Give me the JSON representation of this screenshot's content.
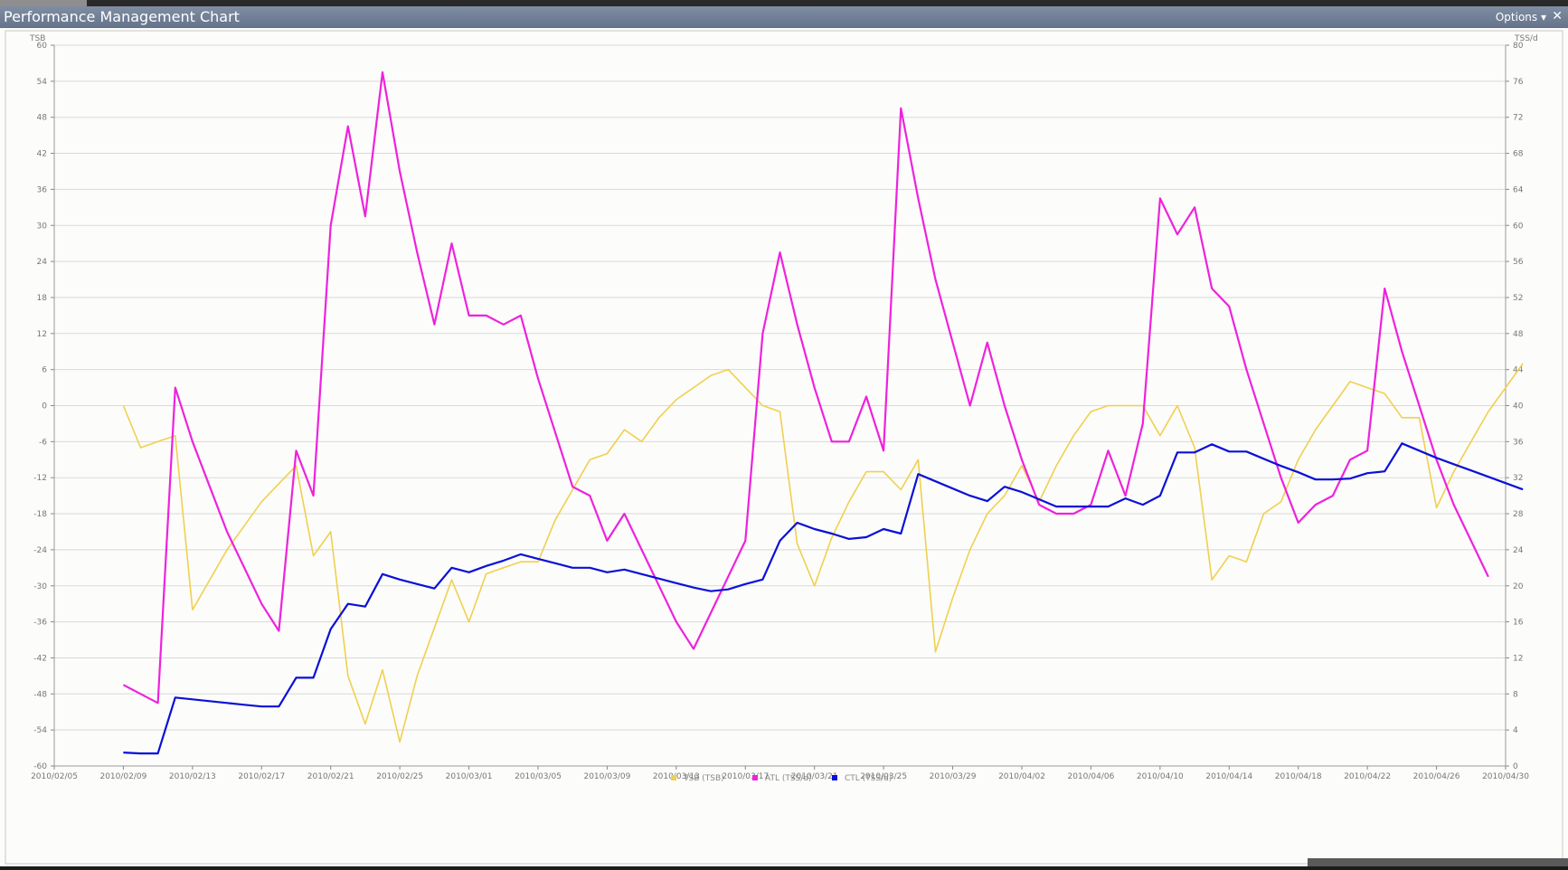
{
  "window": {
    "title": "Performance Management Chart",
    "options_label": "Options ▾",
    "close_label": "✕"
  },
  "chart_data": {
    "type": "line",
    "left_axis": {
      "label": "TSB",
      "min": -60,
      "max": 60,
      "ticks": [
        -60,
        -54,
        -48,
        -42,
        -36,
        -30,
        -24,
        -18,
        -12,
        -6,
        0,
        6,
        12,
        18,
        24,
        30,
        36,
        42,
        48,
        54,
        60
      ]
    },
    "right_axis": {
      "label": "TSS/d",
      "min": 0,
      "max": 80,
      "ticks": [
        0,
        4,
        8,
        12,
        16,
        20,
        24,
        28,
        32,
        36,
        40,
        44,
        48,
        52,
        56,
        60,
        64,
        68,
        72,
        76,
        80
      ]
    },
    "x_axis": {
      "start": "2010/02/05",
      "end": "2010/04/30",
      "tick_labels": [
        "2010/02/05",
        "2010/02/09",
        "2010/02/13",
        "2010/02/17",
        "2010/02/21",
        "2010/02/25",
        "2010/03/01",
        "2010/03/05",
        "2010/03/09",
        "2010/03/13",
        "2010/03/17",
        "2010/03/21",
        "2010/03/25",
        "2010/03/29",
        "2010/04/02",
        "2010/04/06",
        "2010/04/10",
        "2010/04/14",
        "2010/04/18",
        "2010/04/22",
        "2010/04/26",
        "2010/04/30"
      ]
    },
    "legend": {
      "placement": "bottom-center",
      "entries": [
        {
          "label": "TSB (TSB)",
          "color": "#f0d050"
        },
        {
          "label": "ATL (TSS/d)",
          "color": "#ee22dd"
        },
        {
          "label": "CTL (TSS/d)",
          "color": "#0a10d8"
        }
      ]
    },
    "grid": true,
    "series": [
      {
        "name": "TSB (TSB)",
        "axis": "left",
        "color": "#f0d050",
        "points": [
          [
            "2010/02/09",
            0
          ],
          [
            "2010/02/10",
            -7
          ],
          [
            "2010/02/11",
            -6
          ],
          [
            "2010/02/12",
            -5
          ],
          [
            "2010/02/13",
            -34
          ],
          [
            "2010/02/14",
            -29
          ],
          [
            "2010/02/15",
            -24
          ],
          [
            "2010/02/16",
            -20
          ],
          [
            "2010/02/17",
            -16
          ],
          [
            "2010/02/18",
            -13
          ],
          [
            "2010/02/19",
            -10
          ],
          [
            "2010/02/20",
            -25
          ],
          [
            "2010/02/21",
            -21
          ],
          [
            "2010/02/22",
            -45
          ],
          [
            "2010/02/23",
            -53
          ],
          [
            "2010/02/24",
            -44
          ],
          [
            "2010/02/25",
            -56
          ],
          [
            "2010/02/26",
            -45
          ],
          [
            "2010/02/27",
            -37
          ],
          [
            "2010/02/28",
            -29
          ],
          [
            "2010/03/01",
            -36
          ],
          [
            "2010/03/02",
            -28
          ],
          [
            "2010/03/03",
            -27
          ],
          [
            "2010/03/04",
            -26
          ],
          [
            "2010/03/05",
            -26
          ],
          [
            "2010/03/06",
            -19
          ],
          [
            "2010/03/07",
            -14
          ],
          [
            "2010/03/08",
            -9
          ],
          [
            "2010/03/09",
            -8
          ],
          [
            "2010/03/10",
            -4
          ],
          [
            "2010/03/11",
            -6
          ],
          [
            "2010/03/12",
            -2
          ],
          [
            "2010/03/13",
            1
          ],
          [
            "2010/03/14",
            3
          ],
          [
            "2010/03/15",
            5
          ],
          [
            "2010/03/16",
            6
          ],
          [
            "2010/03/17",
            3
          ],
          [
            "2010/03/18",
            0
          ],
          [
            "2010/03/19",
            -1
          ],
          [
            "2010/03/20",
            -23
          ],
          [
            "2010/03/21",
            -30
          ],
          [
            "2010/03/22",
            -22
          ],
          [
            "2010/03/23",
            -16
          ],
          [
            "2010/03/24",
            -11
          ],
          [
            "2010/03/25",
            -11
          ],
          [
            "2010/03/26",
            -14
          ],
          [
            "2010/03/27",
            -9
          ],
          [
            "2010/03/28",
            -41
          ],
          [
            "2010/03/29",
            -32
          ],
          [
            "2010/03/30",
            -24
          ],
          [
            "2010/03/31",
            -18
          ],
          [
            "2010/04/01",
            -15
          ],
          [
            "2010/04/02",
            -10
          ],
          [
            "2010/04/03",
            -16
          ],
          [
            "2010/04/04",
            -10
          ],
          [
            "2010/04/05",
            -5
          ],
          [
            "2010/04/06",
            -1
          ],
          [
            "2010/04/07",
            0
          ],
          [
            "2010/04/08",
            0
          ],
          [
            "2010/04/09",
            0
          ],
          [
            "2010/04/10",
            -5
          ],
          [
            "2010/04/11",
            0
          ],
          [
            "2010/04/12",
            -7
          ],
          [
            "2010/04/13",
            -29
          ],
          [
            "2010/04/14",
            -25
          ],
          [
            "2010/04/15",
            -26
          ],
          [
            "2010/04/16",
            -18
          ],
          [
            "2010/04/17",
            -16
          ],
          [
            "2010/04/18",
            -9
          ],
          [
            "2010/04/19",
            -4
          ],
          [
            "2010/04/20",
            0
          ],
          [
            "2010/04/21",
            4
          ],
          [
            "2010/04/22",
            3
          ],
          [
            "2010/04/23",
            2
          ],
          [
            "2010/04/24",
            -2
          ],
          [
            "2010/04/25",
            -2
          ],
          [
            "2010/04/26",
            -17
          ],
          [
            "2010/04/27",
            -11
          ],
          [
            "2010/04/28",
            -6
          ],
          [
            "2010/04/29",
            -1
          ],
          [
            "2010/04/30",
            3
          ],
          [
            "2010/05/01",
            7
          ]
        ]
      },
      {
        "name": "ATL (TSS/d)",
        "axis": "right",
        "color": "#ee22dd",
        "points": [
          [
            "2010/02/09",
            9
          ],
          [
            "2010/02/10",
            8
          ],
          [
            "2010/02/11",
            7
          ],
          [
            "2010/02/12",
            42
          ],
          [
            "2010/02/13",
            36
          ],
          [
            "2010/02/14",
            31
          ],
          [
            "2010/02/15",
            26
          ],
          [
            "2010/02/16",
            22
          ],
          [
            "2010/02/17",
            18
          ],
          [
            "2010/02/18",
            15
          ],
          [
            "2010/02/19",
            35
          ],
          [
            "2010/02/20",
            30
          ],
          [
            "2010/02/21",
            60
          ],
          [
            "2010/02/22",
            71
          ],
          [
            "2010/02/23",
            61
          ],
          [
            "2010/02/24",
            77
          ],
          [
            "2010/02/25",
            66
          ],
          [
            "2010/02/26",
            57
          ],
          [
            "2010/02/27",
            49
          ],
          [
            "2010/02/28",
            58
          ],
          [
            "2010/03/01",
            50
          ],
          [
            "2010/03/02",
            50
          ],
          [
            "2010/03/03",
            49
          ],
          [
            "2010/03/04",
            50
          ],
          [
            "2010/03/05",
            43
          ],
          [
            "2010/03/06",
            37
          ],
          [
            "2010/03/07",
            31
          ],
          [
            "2010/03/08",
            30
          ],
          [
            "2010/03/09",
            25
          ],
          [
            "2010/03/10",
            28
          ],
          [
            "2010/03/11",
            24
          ],
          [
            "2010/03/12",
            20
          ],
          [
            "2010/03/13",
            16
          ],
          [
            "2010/03/14",
            13
          ],
          [
            "2010/03/15",
            17
          ],
          [
            "2010/03/16",
            21
          ],
          [
            "2010/03/17",
            25
          ],
          [
            "2010/03/18",
            48
          ],
          [
            "2010/03/19",
            57
          ],
          [
            "2010/03/20",
            49
          ],
          [
            "2010/03/21",
            42
          ],
          [
            "2010/03/22",
            36
          ],
          [
            "2010/03/23",
            36
          ],
          [
            "2010/03/24",
            41
          ],
          [
            "2010/03/25",
            35
          ],
          [
            "2010/03/26",
            73
          ],
          [
            "2010/03/27",
            63
          ],
          [
            "2010/03/28",
            54
          ],
          [
            "2010/03/29",
            47
          ],
          [
            "2010/03/30",
            40
          ],
          [
            "2010/03/31",
            47
          ],
          [
            "2010/04/01",
            40
          ],
          [
            "2010/04/02",
            34
          ],
          [
            "2010/04/03",
            29
          ],
          [
            "2010/04/04",
            28
          ],
          [
            "2010/04/05",
            28
          ],
          [
            "2010/04/06",
            29
          ],
          [
            "2010/04/07",
            35
          ],
          [
            "2010/04/08",
            30
          ],
          [
            "2010/04/09",
            38
          ],
          [
            "2010/04/10",
            63
          ],
          [
            "2010/04/11",
            59
          ],
          [
            "2010/04/12",
            62
          ],
          [
            "2010/04/13",
            53
          ],
          [
            "2010/04/14",
            51
          ],
          [
            "2010/04/15",
            44
          ],
          [
            "2010/04/16",
            38
          ],
          [
            "2010/04/17",
            32
          ],
          [
            "2010/04/18",
            27
          ],
          [
            "2010/04/19",
            29
          ],
          [
            "2010/04/20",
            30
          ],
          [
            "2010/04/21",
            34
          ],
          [
            "2010/04/22",
            35
          ],
          [
            "2010/04/23",
            53
          ],
          [
            "2010/04/24",
            46
          ],
          [
            "2010/04/25",
            40
          ],
          [
            "2010/04/26",
            34
          ],
          [
            "2010/04/27",
            29
          ],
          [
            "2010/04/28",
            25
          ],
          [
            "2010/04/29",
            21
          ]
        ]
      },
      {
        "name": "CTL (TSS/d)",
        "axis": "right",
        "color": "#0a10d8",
        "points": [
          [
            "2010/02/09",
            1.5
          ],
          [
            "2010/02/10",
            1.4
          ],
          [
            "2010/02/11",
            1.4
          ],
          [
            "2010/02/12",
            7.6
          ],
          [
            "2010/02/13",
            7.4
          ],
          [
            "2010/02/14",
            7.2
          ],
          [
            "2010/02/15",
            7.0
          ],
          [
            "2010/02/16",
            6.8
          ],
          [
            "2010/02/17",
            6.6
          ],
          [
            "2010/02/18",
            6.6
          ],
          [
            "2010/02/19",
            9.8
          ],
          [
            "2010/02/20",
            9.8
          ],
          [
            "2010/02/21",
            15.2
          ],
          [
            "2010/02/22",
            18.0
          ],
          [
            "2010/02/23",
            17.7
          ],
          [
            "2010/02/24",
            21.3
          ],
          [
            "2010/02/25",
            20.7
          ],
          [
            "2010/02/26",
            20.2
          ],
          [
            "2010/02/27",
            19.7
          ],
          [
            "2010/02/28",
            22.0
          ],
          [
            "2010/03/01",
            21.5
          ],
          [
            "2010/03/02",
            22.2
          ],
          [
            "2010/03/03",
            22.8
          ],
          [
            "2010/03/04",
            23.5
          ],
          [
            "2010/03/05",
            23.0
          ],
          [
            "2010/03/06",
            22.5
          ],
          [
            "2010/03/07",
            22.0
          ],
          [
            "2010/03/08",
            22.0
          ],
          [
            "2010/03/09",
            21.5
          ],
          [
            "2010/03/10",
            21.8
          ],
          [
            "2010/03/11",
            21.3
          ],
          [
            "2010/03/12",
            20.8
          ],
          [
            "2010/03/13",
            20.3
          ],
          [
            "2010/03/14",
            19.8
          ],
          [
            "2010/03/15",
            19.4
          ],
          [
            "2010/03/16",
            19.6
          ],
          [
            "2010/03/17",
            20.2
          ],
          [
            "2010/03/18",
            20.7
          ],
          [
            "2010/03/19",
            25.0
          ],
          [
            "2010/03/20",
            27.0
          ],
          [
            "2010/03/21",
            26.3
          ],
          [
            "2010/03/22",
            25.8
          ],
          [
            "2010/03/23",
            25.2
          ],
          [
            "2010/03/24",
            25.4
          ],
          [
            "2010/03/25",
            26.3
          ],
          [
            "2010/03/26",
            25.8
          ],
          [
            "2010/03/27",
            32.4
          ],
          [
            "2010/03/28",
            31.6
          ],
          [
            "2010/03/29",
            30.8
          ],
          [
            "2010/03/30",
            30.0
          ],
          [
            "2010/03/31",
            29.4
          ],
          [
            "2010/04/01",
            31.0
          ],
          [
            "2010/04/02",
            30.4
          ],
          [
            "2010/04/03",
            29.6
          ],
          [
            "2010/04/04",
            28.8
          ],
          [
            "2010/04/05",
            28.8
          ],
          [
            "2010/04/06",
            28.8
          ],
          [
            "2010/04/07",
            28.8
          ],
          [
            "2010/04/08",
            29.7
          ],
          [
            "2010/04/09",
            29.0
          ],
          [
            "2010/04/10",
            30.0
          ],
          [
            "2010/04/11",
            34.8
          ],
          [
            "2010/04/12",
            34.8
          ],
          [
            "2010/04/13",
            35.7
          ],
          [
            "2010/04/14",
            34.9
          ],
          [
            "2010/04/15",
            34.9
          ],
          [
            "2010/04/16",
            34.1
          ],
          [
            "2010/04/17",
            33.3
          ],
          [
            "2010/04/18",
            32.6
          ],
          [
            "2010/04/19",
            31.8
          ],
          [
            "2010/04/20",
            31.8
          ],
          [
            "2010/04/21",
            31.9
          ],
          [
            "2010/04/22",
            32.5
          ],
          [
            "2010/04/23",
            32.7
          ],
          [
            "2010/04/24",
            35.8
          ],
          [
            "2010/04/25",
            35.0
          ],
          [
            "2010/04/26",
            34.2
          ],
          [
            "2010/04/27",
            33.5
          ],
          [
            "2010/04/28",
            32.8
          ],
          [
            "2010/04/29",
            32.1
          ],
          [
            "2010/04/30",
            31.4
          ],
          [
            "2010/05/01",
            30.7
          ]
        ]
      }
    ]
  }
}
